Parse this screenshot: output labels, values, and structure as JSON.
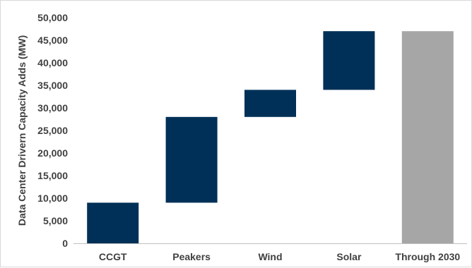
{
  "chart_data": {
    "type": "waterfall",
    "ylabel": "Data Center Drivern Capacity Adds (MW)",
    "xlabel": "",
    "title": "",
    "ylim": [
      0,
      50000
    ],
    "yticks": [
      0,
      5000,
      10000,
      15000,
      20000,
      25000,
      30000,
      35000,
      40000,
      45000,
      50000
    ],
    "ytick_labels": [
      "0",
      "5,000",
      "10,000",
      "15,000",
      "20,000",
      "25,000",
      "30,000",
      "35,000",
      "40,000",
      "45,000",
      "50,000"
    ],
    "categories": [
      "CCGT",
      "Peakers",
      "Wind",
      "Solar",
      "Through 2030"
    ],
    "increments": [
      9000,
      19000,
      6000,
      13000,
      null
    ],
    "base": [
      0,
      9000,
      28000,
      34000,
      0
    ],
    "top": [
      9000,
      28000,
      34000,
      47000,
      47000
    ],
    "total_value": 47000,
    "colors": {
      "increment": "#003057",
      "total": "#a6a6a6",
      "axis": "#bfbfbf",
      "text": "#404040"
    },
    "grid": false,
    "legend": "none"
  }
}
